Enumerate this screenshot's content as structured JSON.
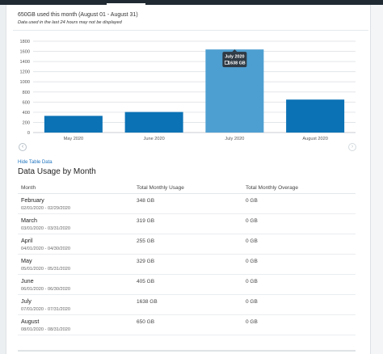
{
  "header": {
    "usage_summary": "650GB used this month (August 01 - August 31)",
    "note": "Data used in the last 24 hours may not be displayed"
  },
  "chart_data": {
    "type": "bar",
    "categories": [
      "May 2020",
      "June 2020",
      "July 2020",
      "August 2020"
    ],
    "values": [
      329,
      405,
      1638,
      650
    ],
    "ylim": [
      0,
      1800
    ],
    "yticks": [
      0,
      200,
      400,
      600,
      800,
      1000,
      1200,
      1400,
      1600,
      1800
    ],
    "grid": true,
    "highlighted_index": 2,
    "colors": {
      "bar": "#0b72b5",
      "highlight": "#4e9fd1",
      "tooltip_bg": "#2f3a44"
    },
    "tooltip": {
      "title": "July 2020",
      "value": "1638 GB"
    }
  },
  "nav": {
    "prev_icon": "‹",
    "next_icon": "›"
  },
  "table_section": {
    "toggle_label": "Hide Table Data",
    "title": "Data Usage by Month",
    "columns": [
      "Month",
      "Total Monthly Usage",
      "Total Monthly Overage"
    ],
    "rows": [
      {
        "month": "February",
        "range": "02/01/2020 - 02/29/2020",
        "usage": "348 GB",
        "overage": "0 GB"
      },
      {
        "month": "March",
        "range": "03/01/2020 - 03/31/2020",
        "usage": "319 GB",
        "overage": "0 GB"
      },
      {
        "month": "April",
        "range": "04/01/2020 - 04/30/2020",
        "usage": "255 GB",
        "overage": "0 GB"
      },
      {
        "month": "May",
        "range": "05/01/2020 - 05/31/2020",
        "usage": "329 GB",
        "overage": "0 GB"
      },
      {
        "month": "June",
        "range": "06/01/2020 - 06/30/2020",
        "usage": "405 GB",
        "overage": "0 GB"
      },
      {
        "month": "July",
        "range": "07/01/2020 - 07/31/2020",
        "usage": "1638 GB",
        "overage": "0 GB"
      },
      {
        "month": "August",
        "range": "08/01/2020 - 08/31/2020",
        "usage": "650 GB",
        "overage": "0 GB"
      }
    ]
  }
}
